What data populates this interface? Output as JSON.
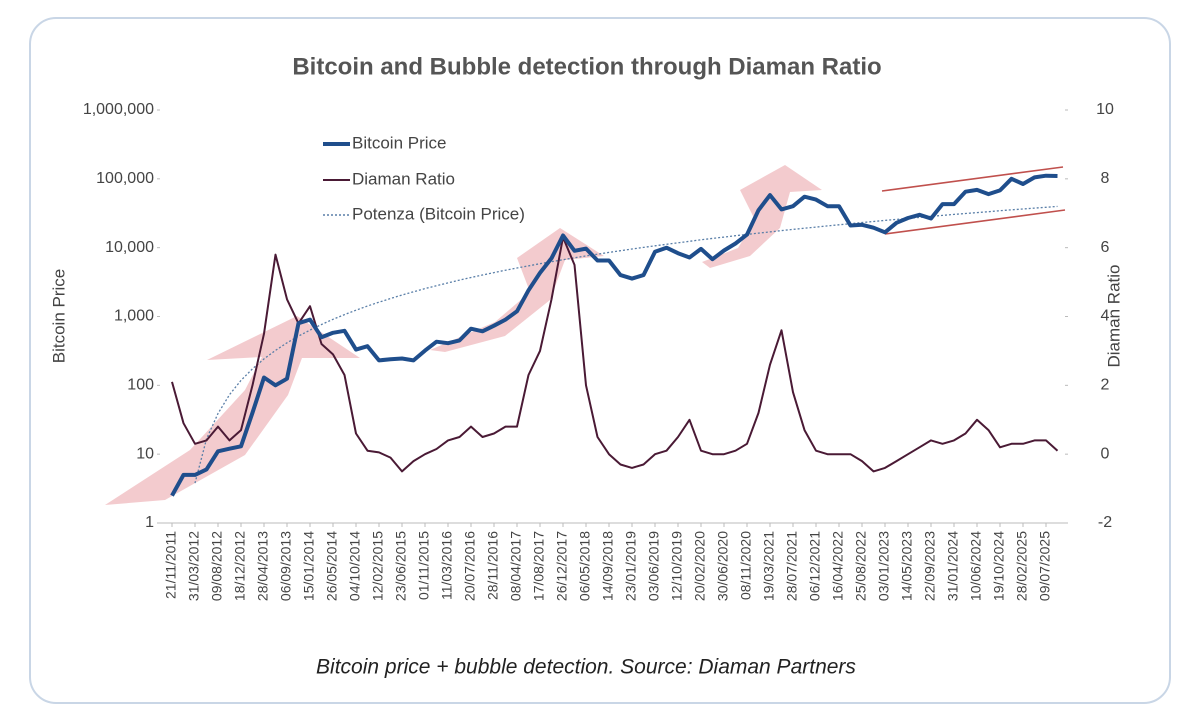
{
  "chart_data": {
    "type": "line",
    "title": "Bitcoin and Bubble detection through Diaman Ratio",
    "caption": "Bitcoin price + bubble detection. Source: Diaman Partners",
    "ylabel": "Bitcoin Price",
    "y2label": "Diaman Ratio",
    "yscale": "log",
    "ylim": [
      1,
      1000000
    ],
    "yticks": [
      1,
      10,
      100,
      {
        "value": 1000,
        "label": "1,000"
      },
      {
        "value": 10000,
        "label": "10,000"
      },
      {
        "value": 100000,
        "label": "100,000"
      },
      {
        "value": 1000000,
        "label": "1,000,000"
      }
    ],
    "y2lim": [
      -2,
      10
    ],
    "y2ticks": [
      -2,
      0,
      2,
      4,
      6,
      8,
      10
    ],
    "grid": false,
    "legend": "upper left",
    "categories": [
      "21/11/2011",
      null,
      "31/03/2012",
      null,
      "09/08/2012",
      null,
      "18/12/2012",
      null,
      "28/04/2013",
      null,
      "06/09/2013",
      null,
      "15/01/2014",
      null,
      "26/05/2014",
      null,
      "04/10/2014",
      null,
      "12/02/2015",
      null,
      "23/06/2015",
      null,
      "01/11/2015",
      null,
      "11/03/2016",
      null,
      "20/07/2016",
      null,
      "28/11/2016",
      null,
      "08/04/2017",
      null,
      "17/08/2017",
      null,
      "26/12/2017",
      null,
      "06/05/2018",
      null,
      "14/09/2018",
      null,
      "23/01/2019",
      null,
      "03/06/2019",
      null,
      "12/10/2019",
      null,
      "20/02/2020",
      null,
      "30/06/2020",
      null,
      "08/11/2020",
      null,
      "19/03/2021",
      null,
      "28/07/2021",
      null,
      "06/12/2021",
      null,
      "16/04/2022",
      null,
      "25/08/2022",
      null,
      "03/01/2023",
      null,
      "14/05/2023",
      null,
      "22/09/2023",
      null,
      "31/01/2024",
      null,
      "10/06/2024",
      null,
      "19/10/2024",
      null,
      "28/02/2025",
      null,
      "09/07/2025",
      null
    ],
    "series": [
      {
        "name": "Bitcoin Price",
        "color": "#1f4e8c",
        "width": 4,
        "style": "solid",
        "values": [
          2.5,
          5,
          5,
          6,
          11,
          12,
          13,
          40,
          130,
          100,
          125,
          800,
          900,
          500,
          580,
          620,
          330,
          370,
          230,
          240,
          245,
          230,
          320,
          430,
          410,
          450,
          665,
          610,
          735,
          900,
          1190,
          2400,
          4300,
          7000,
          15000,
          9000,
          9700,
          6500,
          6500,
          4000,
          3550,
          4000,
          8700,
          10000,
          8300,
          7200,
          9600,
          6800,
          9100,
          11500,
          15500,
          35000,
          58000,
          36000,
          40000,
          55000,
          50000,
          40000,
          40000,
          21000,
          21500,
          19500,
          16700,
          23000,
          27000,
          30000,
          26500,
          43000,
          43000,
          65000,
          69000,
          60000,
          68000,
          100000,
          84000,
          105000,
          111000,
          110000
        ]
      },
      {
        "name": "Diaman Ratio",
        "color": "#4a1a35",
        "width": 2,
        "style": "solid",
        "axis": "y2",
        "values": [
          2.1,
          0.9,
          0.3,
          0.4,
          0.8,
          0.4,
          0.7,
          2.0,
          3.5,
          5.8,
          4.5,
          3.8,
          4.3,
          3.2,
          2.9,
          2.3,
          0.6,
          0.1,
          0.05,
          -0.1,
          -0.5,
          -0.2,
          0.0,
          0.15,
          0.4,
          0.5,
          0.8,
          0.5,
          0.6,
          0.8,
          0.8,
          2.3,
          3.0,
          4.5,
          6.3,
          5.5,
          2.0,
          0.5,
          0.0,
          -0.3,
          -0.4,
          -0.3,
          0.0,
          0.1,
          0.5,
          1.0,
          0.1,
          0.0,
          0.0,
          0.1,
          0.3,
          1.2,
          2.6,
          3.6,
          1.8,
          0.7,
          0.1,
          0.0,
          0.0,
          0.0,
          -0.2,
          -0.5,
          -0.4,
          -0.2,
          0.0,
          0.2,
          0.4,
          0.3,
          0.4,
          0.6,
          1.0,
          0.7,
          0.2,
          0.3,
          0.3,
          0.4,
          0.4,
          0.1
        ]
      },
      {
        "name": "Potenza (Bitcoin Price)",
        "color": "#5a7fa8",
        "width": 1.3,
        "style": "dotted",
        "values": [
          null,
          null,
          3.8,
          16.6,
          39,
          73,
          118,
          174,
          242,
          322,
          415,
          519,
          635,
          766,
          910,
          1067,
          1236,
          1420,
          1616,
          1827,
          2050,
          2287,
          2540,
          2800,
          3080,
          3380,
          3690,
          4010,
          4350,
          4700,
          5070,
          5440,
          5840,
          6260,
          6690,
          7120,
          7580,
          8050,
          8540,
          9050,
          9560,
          10090,
          10640,
          11200,
          11770,
          12370,
          12990,
          13620,
          14250,
          14900,
          15590,
          16270,
          16970,
          17680,
          18410,
          19160,
          19920,
          20720,
          21520,
          22310,
          23190,
          23990,
          24900,
          25760,
          26650,
          27550,
          28460,
          29470,
          30410,
          31400,
          32360,
          33340,
          34430,
          35480,
          36490,
          37590,
          38620,
          39800
        ]
      }
    ]
  }
}
